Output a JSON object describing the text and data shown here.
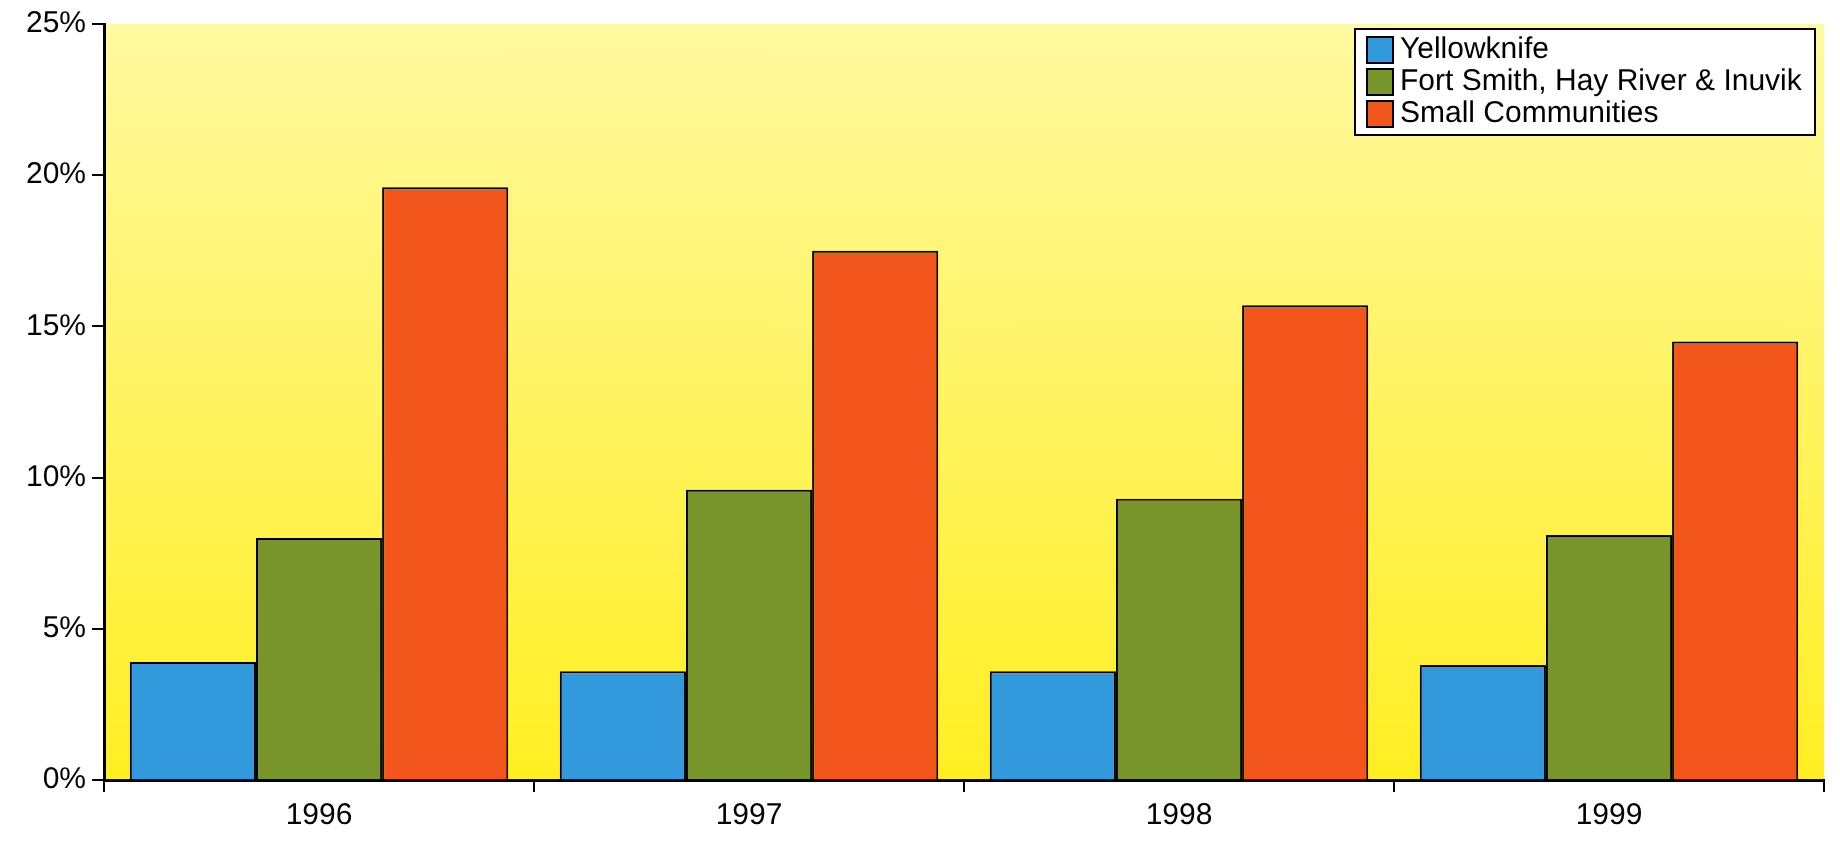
{
  "chart_data": {
    "type": "bar",
    "categories": [
      "1996",
      "1997",
      "1998",
      "1999"
    ],
    "series": [
      {
        "name": "Yellowknife",
        "color": "#3399dd",
        "values": [
          3.9,
          3.6,
          3.6,
          3.8
        ]
      },
      {
        "name": "Fort Smith, Hay River & Inuvik",
        "color": "#77952a",
        "values": [
          8.0,
          9.6,
          9.3,
          8.1
        ]
      },
      {
        "name": "Small Communities",
        "color": "#f2561d",
        "values": [
          19.6,
          17.5,
          15.7,
          14.5
        ]
      }
    ],
    "ylim": [
      0,
      25
    ],
    "yticks": [
      {
        "value": 0,
        "label": "0%"
      },
      {
        "value": 5,
        "label": "5%"
      },
      {
        "value": 10,
        "label": "10%"
      },
      {
        "value": 15,
        "label": "15%"
      },
      {
        "value": 20,
        "label": "20%"
      },
      {
        "value": 25,
        "label": "25%"
      }
    ],
    "grid": false,
    "legend": "top right"
  }
}
